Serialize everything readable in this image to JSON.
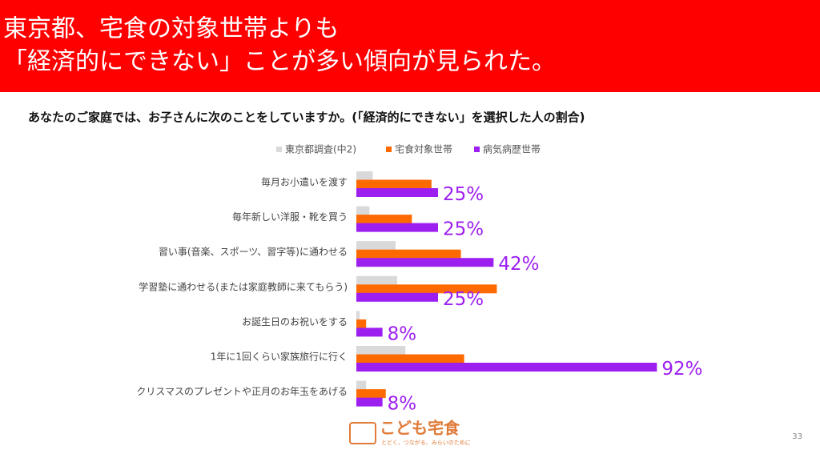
{
  "header": {
    "title_lines": [
      "東京都、宅食の対象世帯よりも",
      "「経済的にできない」ことが多い傾向が見られた。"
    ]
  },
  "chart_data": {
    "type": "hbar",
    "title": "あなたのご家庭では、お子さんに次のことをしていますか。(「経済的にできない」を選択した人の割合)",
    "categories": [
      "毎月お小遣いを渡す",
      "毎年新しい洋服・靴を買う",
      "習い事(音楽、スポーツ、習字等)に通わせる",
      "学習塾に通わせる(または家庭教師に来てもらう)",
      "お誕生日のお祝いをする",
      "1年に1回くらい家族旅行に行く",
      "クリスマスのプレゼントや正月のお年玉をあげる"
    ],
    "xlim": [
      0,
      100
    ],
    "legend": "top",
    "series": [
      {
        "name": "東京都調査(中2)",
        "color": "#d9d9d9",
        "values": [
          5,
          4,
          12,
          12.5,
          1,
          15,
          3
        ]
      },
      {
        "name": "宅食対象世帯",
        "color": "#ff6a00",
        "values": [
          23,
          17,
          32,
          43,
          3,
          33,
          9
        ]
      },
      {
        "name": "病気病歴世帯",
        "color": "#9d1ff0",
        "values": [
          25,
          25,
          42,
          25,
          8,
          92,
          8
        ],
        "value_labels": [
          "25%",
          "25%",
          "42%",
          "25%",
          "8%",
          "92%",
          "8%"
        ]
      }
    ]
  },
  "footer": {
    "logo": "こども宅食",
    "tagline": "とどく、つながる、みらいのために",
    "page_number": "33"
  }
}
